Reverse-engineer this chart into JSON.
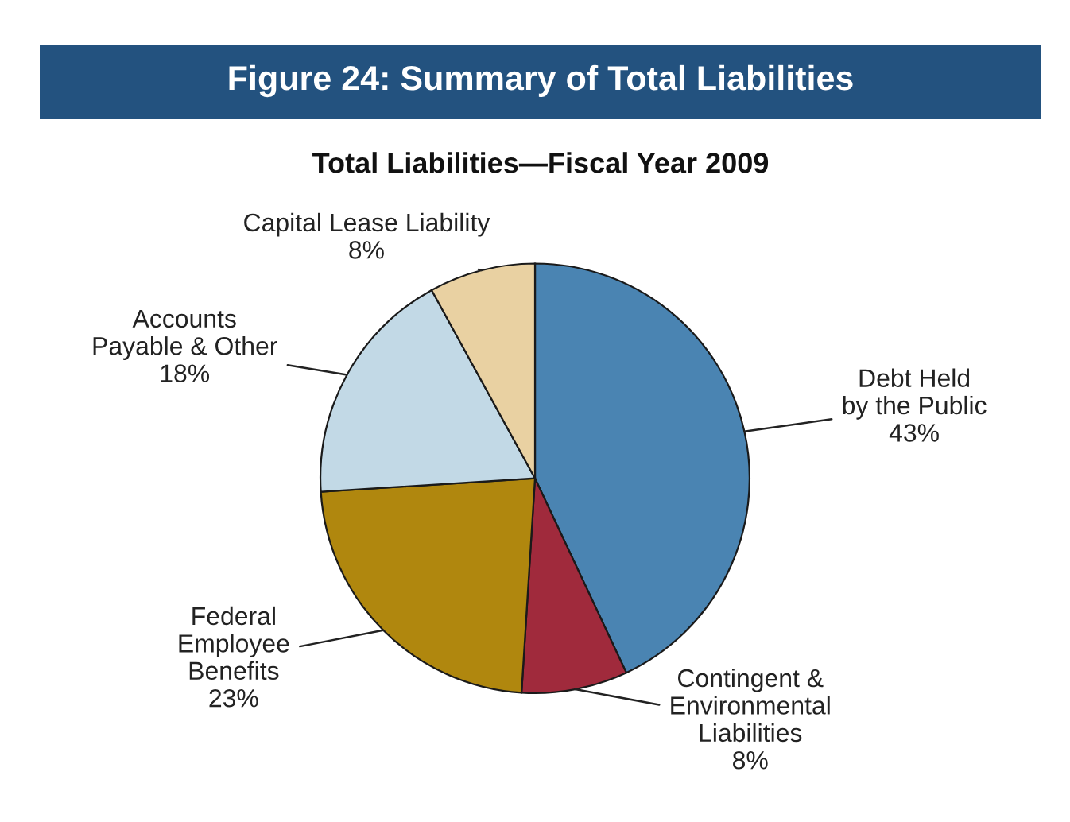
{
  "chart_data": {
    "type": "pie",
    "title": "Figure 24: Summary of Total Liabilities",
    "subtitle": "Total Liabilities—Fiscal Year 2009",
    "categories": [
      "Debt Held\nby the Public",
      "Contingent &\nEnvironmental\nLiabilities",
      "Federal\nEmployee\nBenefits",
      "Accounts\nPayable & Other",
      "Capital Lease Liability"
    ],
    "values": [
      43,
      8,
      23,
      18,
      8
    ],
    "value_labels": [
      "43%",
      "8%",
      "23%",
      "18%",
      "8%"
    ],
    "colors": [
      "#4a84b2",
      "#a02a3c",
      "#b0870e",
      "#c2d9e6",
      "#e9d1a2"
    ],
    "legend": false
  }
}
